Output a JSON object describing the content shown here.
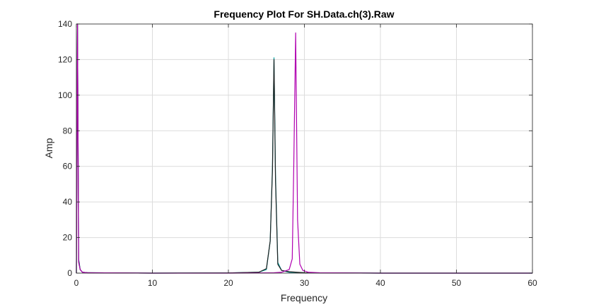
{
  "chart_data": {
    "type": "line",
    "title": "Frequency Plot For SH.Data.ch(3).Raw",
    "xlabel": "Frequency",
    "ylabel": "Amp",
    "xlim": [
      0,
      60
    ],
    "ylim": [
      0,
      140
    ],
    "xticks": [
      0,
      10,
      20,
      30,
      40,
      50,
      60
    ],
    "yticks": [
      0,
      20,
      40,
      60,
      80,
      100,
      120,
      140
    ],
    "grid": true,
    "legend": "none",
    "series": [
      {
        "color": "#00a0a0",
        "x": [
          0,
          0.15,
          0.3,
          0.5,
          0.8,
          1.5,
          10,
          20,
          24,
          25,
          25.5,
          25.8,
          26.0,
          26.2,
          26.5,
          27,
          28,
          30,
          40,
          50,
          60
        ],
        "y": [
          0,
          140,
          8,
          2,
          0.5,
          0.2,
          0,
          0.1,
          0.5,
          2,
          18,
          60,
          121,
          55,
          6,
          1.5,
          0.5,
          0.2,
          0,
          0,
          0
        ]
      },
      {
        "color": "#202020",
        "x": [
          0,
          0.15,
          0.3,
          0.5,
          0.8,
          1.5,
          10,
          20,
          24,
          25,
          25.5,
          25.8,
          26.0,
          26.2,
          26.5,
          27,
          28,
          30,
          40,
          50,
          60
        ],
        "y": [
          0,
          140,
          7,
          2,
          0.5,
          0.2,
          0,
          0.1,
          0.5,
          2.5,
          18,
          58,
          120,
          52,
          5,
          1.5,
          0.8,
          0.2,
          0,
          0,
          0
        ]
      },
      {
        "color": "#b000b0",
        "x": [
          0,
          0.15,
          0.3,
          0.5,
          0.8,
          1.5,
          10,
          20,
          26,
          27,
          28,
          28.4,
          28.6,
          28.85,
          29.1,
          29.4,
          29.8,
          30.5,
          32,
          40,
          50,
          60
        ],
        "y": [
          0,
          140,
          6,
          2,
          0.5,
          0.2,
          0,
          0,
          0.2,
          0.5,
          2,
          8,
          60,
          135,
          30,
          5,
          1.5,
          0.5,
          0.2,
          0,
          0,
          0
        ]
      }
    ]
  }
}
